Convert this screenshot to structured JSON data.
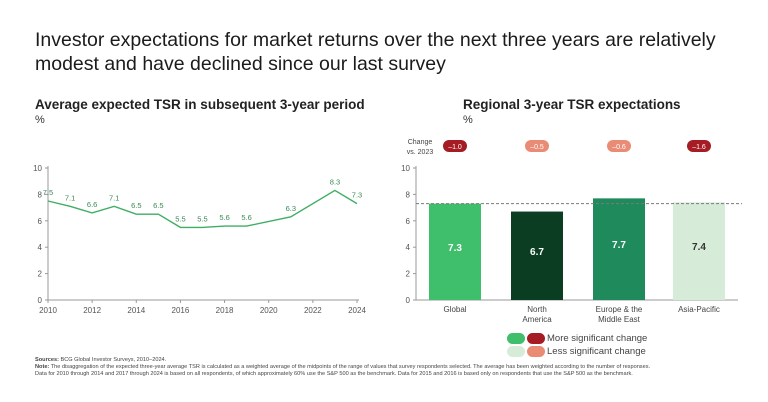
{
  "headline": "Investor expectations for market returns over the next three years are relatively modest and have declined since our last survey",
  "left": {
    "title": "Average expected TSR in subsequent 3-year period",
    "unit": "%"
  },
  "right": {
    "title": "Regional 3-year TSR expectations",
    "unit": "%",
    "change_label_1": "Change",
    "change_label_2": "vs. 2023"
  },
  "legend": {
    "more": "More significant change",
    "less": "Less significant change"
  },
  "notes": {
    "sources_label": "Sources:",
    "sources_text": "BCG Global Investor Surveys, 2010–2024.",
    "note_label": "Note:",
    "note_text": "The disaggregation of the expected three-year average TSR is calculated as a weighted average of the midpoints of the range of values that survey respondents selected. The average has been weighted according to the number of responses.",
    "note_text_2": "Data for 2010 through 2014 and 2017 through 2024 is based on all respondents, of which approximately 60% use the S&P 500 as the benchmark. Data for 2015 and 2016 is based only on respondents that use the S&P 500 as the benchmark."
  },
  "colors": {
    "line": "#3fae63",
    "dashed": "#7a7a7a",
    "axis": "#999999",
    "more_dark_red": "#a51c24",
    "less_light_red": "#ea8c75",
    "more_green": "#3fbe6b",
    "less_green": "#d6ecd9"
  },
  "chart_data": [
    {
      "type": "line",
      "title": "Average expected TSR in subsequent 3-year period",
      "ylabel": "%",
      "x": [
        2010,
        2011,
        2012,
        2013,
        2014,
        2015,
        2016,
        2017,
        2018,
        2019,
        2021,
        2023,
        2024
      ],
      "series": [
        {
          "values": [
            7.5,
            7.1,
            6.6,
            7.1,
            6.5,
            6.5,
            5.5,
            5.5,
            5.6,
            5.6,
            6.3,
            8.3,
            7.3
          ]
        }
      ],
      "data_labels": [
        "7.5",
        "7.1",
        "6.6",
        "7.1",
        "6.5",
        "6.5",
        "5.5",
        "5.5",
        "5.6",
        "5.6",
        "6.3",
        "8.3",
        "7.3"
      ],
      "xlim": [
        2010,
        2024
      ],
      "ylim": [
        0,
        10
      ],
      "xticks": [
        "2010",
        "2012",
        "2014",
        "2016",
        "2018",
        "2020",
        "2022",
        "2024"
      ],
      "yticks": [
        "0",
        "2",
        "4",
        "6",
        "8",
        "10"
      ],
      "grid": false
    },
    {
      "type": "bar",
      "title": "Regional 3-year TSR expectations",
      "ylabel": "%",
      "categories": [
        "Global",
        "North America",
        "Europe & the Middle East",
        "Asia-Pacific"
      ],
      "category_lines": [
        [
          "Global"
        ],
        [
          "North",
          "America"
        ],
        [
          "Europe & the",
          "Middle East"
        ],
        [
          "Asia-Pacific"
        ]
      ],
      "values": [
        7.3,
        6.7,
        7.7,
        7.4
      ],
      "value_labels": [
        "7.3",
        "6.7",
        "7.7",
        "7.4"
      ],
      "bar_colors": [
        "#3fbe6b",
        "#0a3d22",
        "#1f8a5c",
        "#d6ecd9"
      ],
      "label_colors": [
        "#ffffff",
        "#ffffff",
        "#ffffff",
        "#333333"
      ],
      "change_vs_2023": [
        "–1.0",
        "–0.5",
        "–0.6",
        "–1.6"
      ],
      "change_significance": [
        "more",
        "less",
        "less",
        "more"
      ],
      "reference_line": 7.3,
      "ylim": [
        0,
        10
      ],
      "yticks": [
        "0",
        "2",
        "4",
        "6",
        "8",
        "10"
      ],
      "grid": false
    }
  ]
}
